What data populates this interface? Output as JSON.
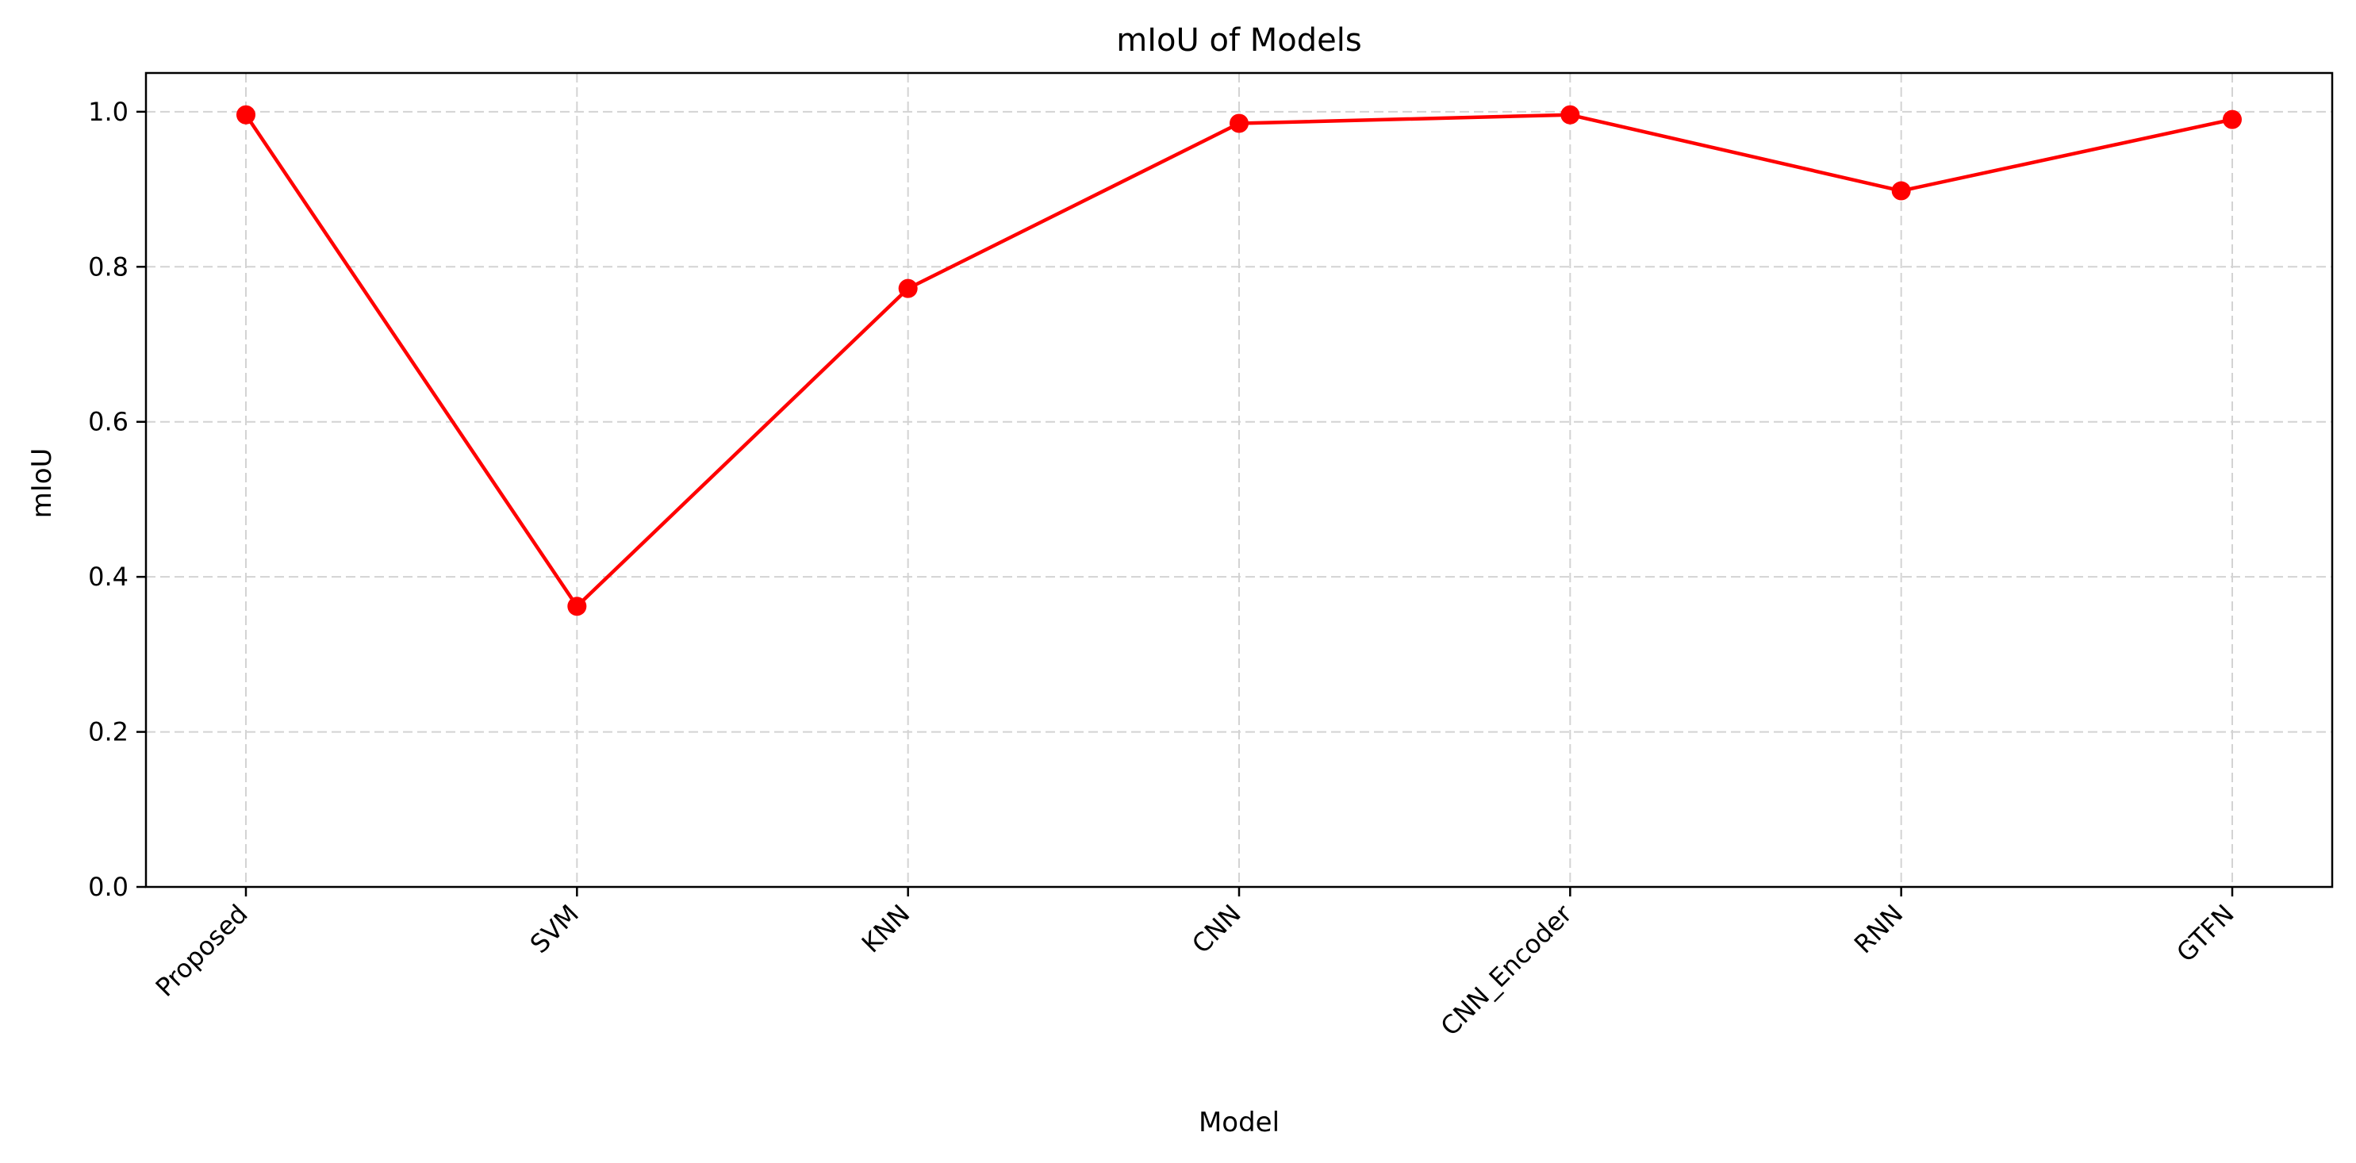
{
  "chart_data": {
    "type": "line",
    "title": "mIoU of Models",
    "xlabel": "Model",
    "ylabel": "mIoU",
    "categories": [
      "Proposed",
      "SVM",
      "KNN",
      "CNN",
      "CNN_Encoder",
      "RNN",
      "GTFN"
    ],
    "series": [
      {
        "values": [
          0.996,
          0.362,
          0.772,
          0.985,
          0.996,
          0.898,
          0.99
        ]
      }
    ],
    "ylim": [
      0,
      1.05
    ],
    "yticks": [
      "0.0",
      "0.2",
      "0.4",
      "0.6",
      "0.8",
      "1.0"
    ],
    "ytick_values": [
      0,
      0.2,
      0.4,
      0.6,
      0.8,
      1.0
    ],
    "grid": true,
    "legend": "none",
    "line_color": "#ff0000",
    "grid_color": "#d3d3d3"
  }
}
